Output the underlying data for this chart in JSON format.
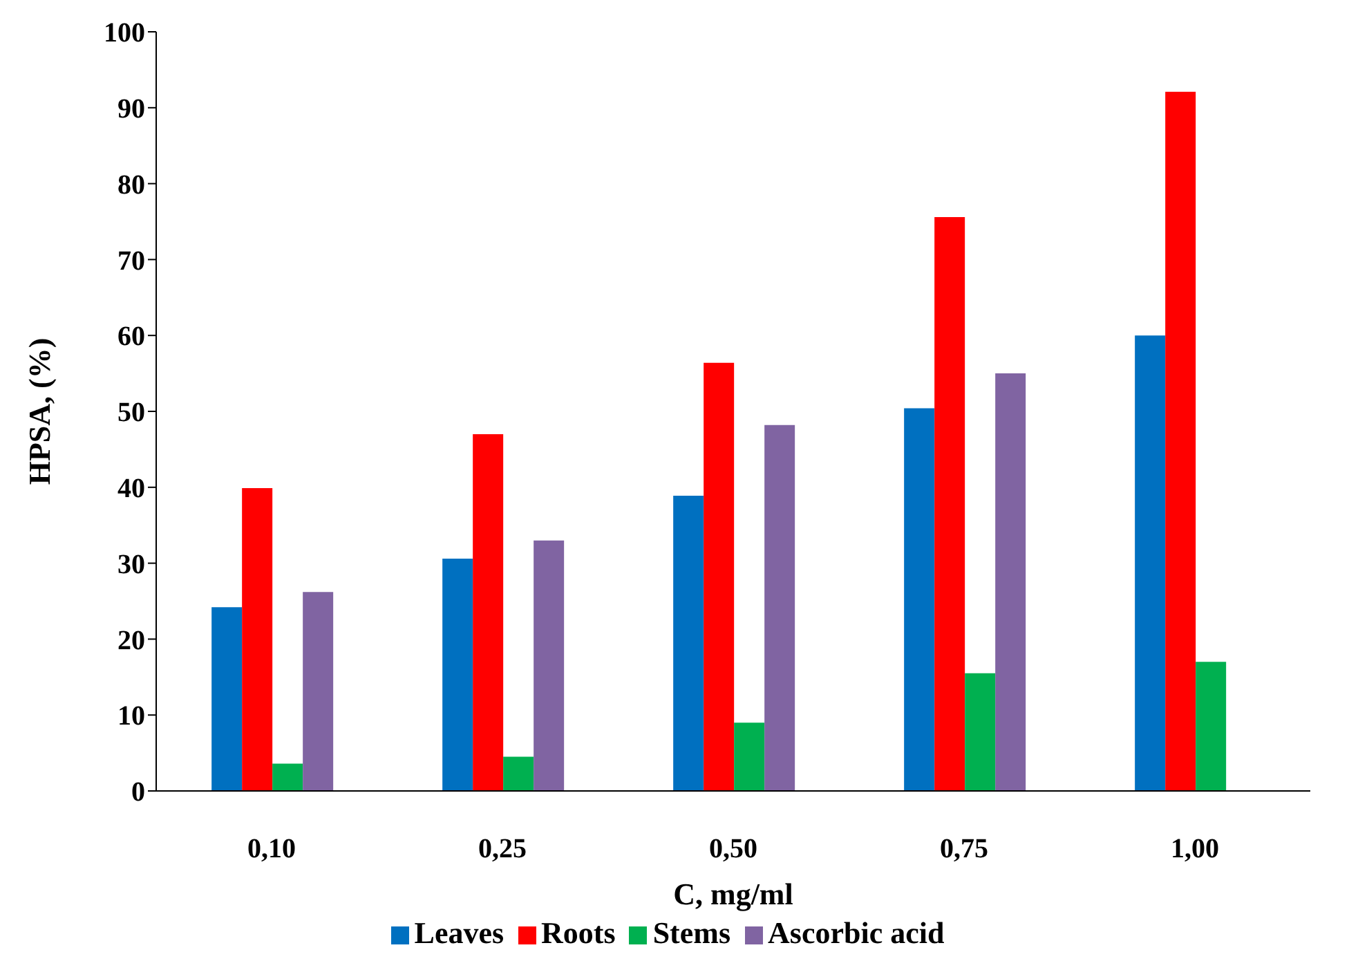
{
  "chart_data": {
    "type": "bar",
    "xlabel": "C, mg/ml",
    "ylabel": "HPSA, (%)",
    "categories": [
      "0,10",
      "0,25",
      "0,50",
      "0,75",
      "1,00"
    ],
    "series": [
      {
        "name": "Leaves",
        "color": "#0070c0",
        "values": [
          24.2,
          30.6,
          38.9,
          50.4,
          60.0
        ]
      },
      {
        "name": "Roots",
        "color": "#ff0000",
        "values": [
          39.9,
          47.0,
          56.4,
          75.6,
          92.1
        ]
      },
      {
        "name": "Stems",
        "color": "#00b050",
        "values": [
          3.6,
          4.5,
          9.0,
          15.5,
          17.0
        ]
      },
      {
        "name": "Ascorbic acid",
        "color": "#8064a2",
        "values": [
          26.2,
          33.0,
          48.2,
          55.0,
          null
        ]
      }
    ],
    "ylim": [
      0,
      100
    ],
    "yticks": [
      0,
      10,
      20,
      30,
      40,
      50,
      60,
      70,
      80,
      90,
      100
    ],
    "grid": false,
    "legend": "bottom"
  }
}
